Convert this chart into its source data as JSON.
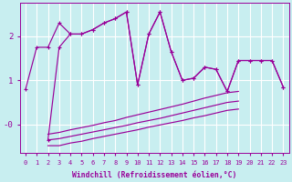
{
  "color": "#990099",
  "bg_color": "#c8eef0",
  "grid_color": "#ffffff",
  "xlabel": "Windchill (Refroidissement éolien,°C)",
  "xlim": [
    -0.5,
    23.5
  ],
  "ylim": [
    -0.65,
    2.75
  ],
  "yticks": [
    0,
    1,
    2
  ],
  "ytick_labels": [
    "-0",
    "1",
    "2"
  ],
  "xticks": [
    0,
    1,
    2,
    3,
    4,
    5,
    6,
    7,
    8,
    9,
    10,
    11,
    12,
    13,
    14,
    15,
    16,
    17,
    18,
    19,
    20,
    21,
    22,
    23
  ],
  "figsize": [
    3.2,
    2.0
  ],
  "dpi": 100,
  "line_main_x": [
    0,
    1,
    2,
    3,
    4,
    5,
    6,
    7,
    8,
    9,
    10,
    11,
    12,
    13,
    14,
    15,
    16,
    17,
    18,
    19,
    20,
    21,
    22,
    23
  ],
  "line_main_y": [
    0.8,
    1.75,
    1.75,
    2.3,
    2.05,
    2.05,
    2.15,
    2.3,
    2.4,
    2.55,
    0.9,
    2.05,
    2.55,
    1.65,
    1.0,
    1.05,
    1.3,
    1.25,
    0.75,
    1.45,
    1.45,
    1.45,
    1.45,
    0.85
  ],
  "line_second_x": [
    2,
    3,
    4,
    5,
    6,
    7,
    8,
    9,
    10,
    11,
    12,
    13,
    14,
    15,
    16,
    17,
    18,
    19,
    20,
    21,
    22,
    23
  ],
  "line_second_y": [
    -0.35,
    1.75,
    2.05,
    2.05,
    2.15,
    2.3,
    2.4,
    2.55,
    0.9,
    2.05,
    2.55,
    1.65,
    1.0,
    1.05,
    1.3,
    1.25,
    0.75,
    1.45,
    1.45,
    1.45,
    1.45,
    0.85
  ],
  "band_x": [
    2,
    3,
    4,
    5,
    6,
    7,
    8,
    9,
    10,
    11,
    12,
    13,
    14,
    15,
    16,
    17,
    18,
    19
  ],
  "band_low_y": [
    -0.48,
    -0.48,
    -0.42,
    -0.38,
    -0.32,
    -0.27,
    -0.22,
    -0.17,
    -0.12,
    -0.06,
    -0.01,
    0.04,
    0.09,
    0.15,
    0.2,
    0.26,
    0.32,
    0.35
  ],
  "band_mid_y": [
    -0.35,
    -0.32,
    -0.27,
    -0.22,
    -0.17,
    -0.12,
    -0.07,
    -0.02,
    0.04,
    0.09,
    0.14,
    0.2,
    0.26,
    0.32,
    0.38,
    0.44,
    0.5,
    0.53
  ],
  "band_high_y": [
    -0.22,
    -0.18,
    -0.12,
    -0.07,
    -0.02,
    0.04,
    0.09,
    0.16,
    0.22,
    0.28,
    0.34,
    0.4,
    0.46,
    0.53,
    0.6,
    0.66,
    0.72,
    0.75
  ],
  "line_upper_x": [
    2,
    15,
    16,
    17,
    18,
    19,
    20,
    21,
    22,
    23
  ],
  "line_upper_y": [
    -0.35,
    1.05,
    1.3,
    1.25,
    0.75,
    1.45,
    1.45,
    1.45,
    1.45,
    0.85
  ]
}
